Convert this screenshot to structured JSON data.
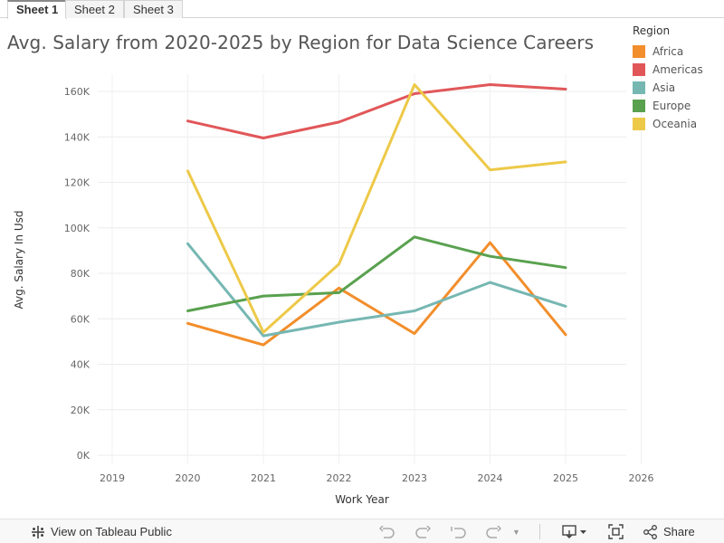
{
  "tabs": [
    {
      "label": "Sheet 1",
      "active": true
    },
    {
      "label": "Sheet 2",
      "active": false
    },
    {
      "label": "Sheet 3",
      "active": false
    }
  ],
  "legend": {
    "title": "Region",
    "items": [
      {
        "label": "Africa",
        "color": "#f28e2b"
      },
      {
        "label": "Americas",
        "color": "#e15759"
      },
      {
        "label": "Asia",
        "color": "#76b7b2"
      },
      {
        "label": "Europe",
        "color": "#59a14f"
      },
      {
        "label": "Oceania",
        "color": "#edc948"
      }
    ]
  },
  "toolbar": {
    "view_label": "View on Tableau Public",
    "share_label": "Share",
    "icons": [
      "tableau-logo-icon",
      "undo-icon",
      "redo-icon",
      "revert-icon",
      "refresh-icon",
      "pause-dropdown-icon",
      "download-icon",
      "fullscreen-icon",
      "share-icon"
    ]
  },
  "chart_data": {
    "type": "line",
    "title": "Avg. Salary from 2020-2025 by Region for Data Science Careers",
    "xlabel": "Work Year",
    "ylabel": "Avg. Salary In Usd",
    "xlim": [
      2019,
      2026
    ],
    "ylim": [
      0,
      170000
    ],
    "x_ticks": [
      "2019",
      "2020",
      "2021",
      "2022",
      "2023",
      "2024",
      "2025",
      "2026"
    ],
    "y_ticks": [
      "0K",
      "20K",
      "40K",
      "60K",
      "80K",
      "100K",
      "120K",
      "140K",
      "160K"
    ],
    "x": [
      2020,
      2021,
      2022,
      2023,
      2024,
      2025
    ],
    "grid": true,
    "legend_position": "right",
    "series": [
      {
        "name": "Africa",
        "color": "#f28e2b",
        "values": [
          58000,
          48500,
          73500,
          53500,
          93500,
          53000
        ]
      },
      {
        "name": "Americas",
        "color": "#e15759",
        "values": [
          147000,
          139500,
          146500,
          159000,
          163000,
          161000
        ]
      },
      {
        "name": "Asia",
        "color": "#76b7b2",
        "values": [
          93000,
          52500,
          58500,
          63500,
          76000,
          65500
        ]
      },
      {
        "name": "Europe",
        "color": "#59a14f",
        "values": [
          63500,
          70000,
          71500,
          96000,
          87500,
          82500
        ]
      },
      {
        "name": "Oceania",
        "color": "#edc948",
        "values": [
          125000,
          54000,
          84000,
          163000,
          125500,
          129000
        ]
      }
    ]
  }
}
